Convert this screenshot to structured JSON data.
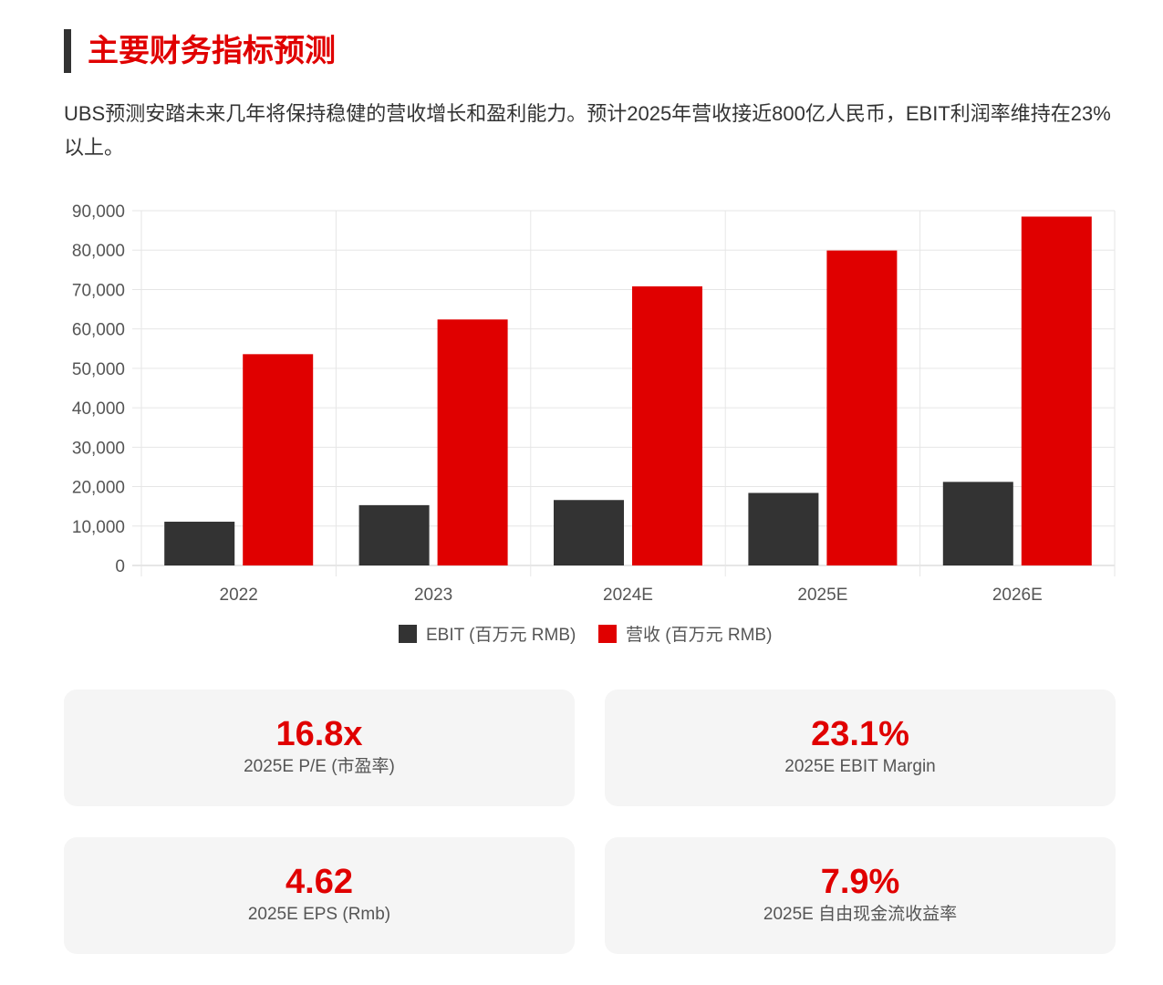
{
  "header": {
    "title": "主要财务指标预测"
  },
  "intro": "UBS预测安踏未来几年将保持稳健的营收增长和盈利能力。预计2025年营收接近800亿人民币，EBIT利润率维持在23%以上。",
  "colors": {
    "accent": "#e00000",
    "dark": "#333333"
  },
  "chart_data": {
    "type": "bar",
    "categories": [
      "2022",
      "2023",
      "2024E",
      "2025E",
      "2026E"
    ],
    "series": [
      {
        "name": "EBIT (百万元 RMB)",
        "color": "#333333",
        "values": [
          11100,
          15300,
          16600,
          18400,
          21200
        ]
      },
      {
        "name": "营收 (百万元 RMB)",
        "color": "#e00000",
        "values": [
          53600,
          62400,
          70800,
          79900,
          88500
        ]
      }
    ],
    "ylim": [
      0,
      90000
    ],
    "yticks": [
      "0",
      "10,000",
      "20,000",
      "30,000",
      "40,000",
      "50,000",
      "60,000",
      "70,000",
      "80,000",
      "90,000"
    ],
    "grid": true,
    "legend": "bottom-center",
    "title": "",
    "xlabel": "",
    "ylabel": ""
  },
  "metrics": [
    {
      "value": "16.8x",
      "label": "2025E P/E (市盈率)"
    },
    {
      "value": "23.1%",
      "label": "2025E EBIT Margin"
    },
    {
      "value": "4.62",
      "label": "2025E EPS (Rmb)"
    },
    {
      "value": "7.9%",
      "label": "2025E 自由现金流收益率"
    }
  ]
}
